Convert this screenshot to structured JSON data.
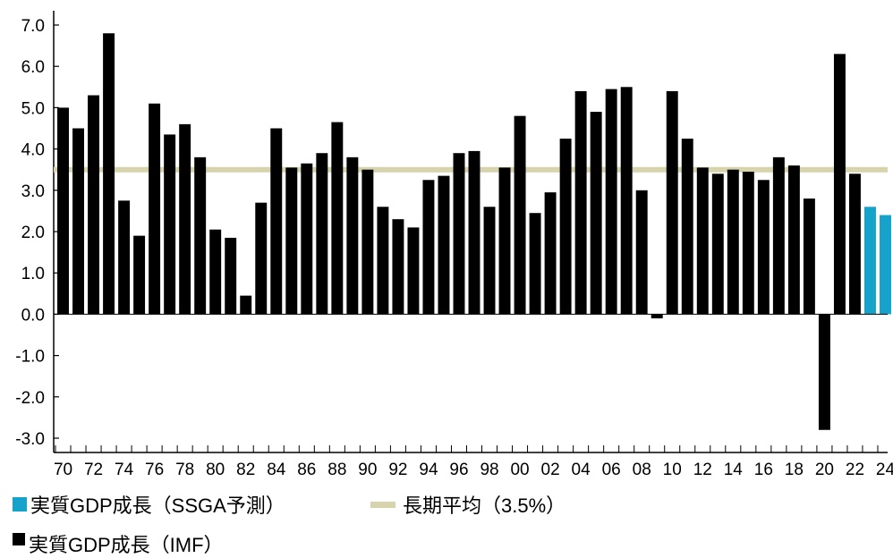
{
  "chart_data": {
    "type": "bar",
    "categories": [
      "70",
      "71",
      "72",
      "73",
      "74",
      "75",
      "76",
      "77",
      "78",
      "79",
      "80",
      "81",
      "82",
      "83",
      "84",
      "85",
      "86",
      "87",
      "88",
      "89",
      "90",
      "91",
      "92",
      "93",
      "94",
      "95",
      "96",
      "97",
      "98",
      "99",
      "00",
      "01",
      "02",
      "03",
      "04",
      "05",
      "06",
      "07",
      "08",
      "09",
      "10",
      "11",
      "12",
      "13",
      "14",
      "15",
      "16",
      "17",
      "18",
      "19",
      "20",
      "21",
      "22",
      "23",
      "24"
    ],
    "tick_labels": [
      "70",
      "72",
      "74",
      "76",
      "78",
      "80",
      "82",
      "84",
      "86",
      "88",
      "90",
      "92",
      "94",
      "96",
      "98",
      "00",
      "02",
      "04",
      "06",
      "08",
      "10",
      "12",
      "14",
      "16",
      "18",
      "20",
      "22",
      "24"
    ],
    "y_ticks": [
      "7.0",
      "6.0",
      "5.0",
      "4.0",
      "3.0",
      "2.0",
      "1.0",
      "0.0",
      "-1.0",
      "-2.0",
      "-3.0"
    ],
    "ylim": [
      -3.0,
      7.0
    ],
    "series": [
      {
        "name": "実質GDP成長（IMF）",
        "color": "#000000",
        "values": [
          5.0,
          4.5,
          5.3,
          6.8,
          2.75,
          1.9,
          5.1,
          4.35,
          4.6,
          3.8,
          2.05,
          1.85,
          0.45,
          2.7,
          4.5,
          3.55,
          3.65,
          3.9,
          4.65,
          3.8,
          3.5,
          2.6,
          2.3,
          2.1,
          3.25,
          3.35,
          3.9,
          3.95,
          2.6,
          3.55,
          4.8,
          2.45,
          2.95,
          4.25,
          5.4,
          4.9,
          5.45,
          5.5,
          3.0,
          -0.1,
          5.4,
          4.25,
          3.55,
          3.4,
          3.5,
          3.45,
          3.25,
          3.8,
          3.6,
          2.8,
          -2.8,
          6.3,
          3.4,
          null,
          null
        ]
      },
      {
        "name": "実質GDP成長（SSGA予測）",
        "color": "#15a3cb",
        "values": [
          null,
          null,
          null,
          null,
          null,
          null,
          null,
          null,
          null,
          null,
          null,
          null,
          null,
          null,
          null,
          null,
          null,
          null,
          null,
          null,
          null,
          null,
          null,
          null,
          null,
          null,
          null,
          null,
          null,
          null,
          null,
          null,
          null,
          null,
          null,
          null,
          null,
          null,
          null,
          null,
          null,
          null,
          null,
          null,
          null,
          null,
          null,
          null,
          null,
          null,
          null,
          null,
          null,
          2.6,
          2.4
        ]
      }
    ],
    "average_line": {
      "name": "長期平均（3.5%）",
      "value": 3.5,
      "color": "#d6d3ad"
    },
    "legend": [
      {
        "label": "実質GDP成長（SSGA予測）",
        "color": "#15a3cb"
      },
      {
        "label": "長期平均（3.5%）",
        "color": "#d6d3ad"
      },
      {
        "label": "実質GDP成長（IMF）",
        "color": "#000000"
      }
    ],
    "grid": false,
    "legend_position": "bottom-left"
  }
}
